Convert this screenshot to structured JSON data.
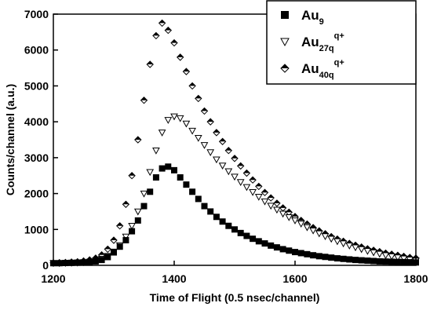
{
  "chart_data": {
    "type": "scatter",
    "x_label": "Time of Flight (0.5 nsec/channel)",
    "y_label": "Counts/channel (a.u.)",
    "xlim": [
      1200,
      1800
    ],
    "xticks": [
      1200,
      1400,
      1600,
      1800
    ],
    "ylim": [
      0,
      7000
    ],
    "yticks": [
      0,
      1000,
      2000,
      3000,
      4000,
      5000,
      6000,
      7000
    ],
    "legend": "top-right",
    "x": [
      1200,
      1210,
      1220,
      1230,
      1240,
      1250,
      1260,
      1270,
      1280,
      1290,
      1300,
      1310,
      1320,
      1330,
      1340,
      1350,
      1360,
      1370,
      1380,
      1390,
      1400,
      1410,
      1420,
      1430,
      1440,
      1450,
      1460,
      1470,
      1480,
      1490,
      1500,
      1510,
      1520,
      1530,
      1540,
      1550,
      1560,
      1570,
      1580,
      1590,
      1600,
      1610,
      1620,
      1630,
      1640,
      1650,
      1660,
      1670,
      1680,
      1690,
      1700,
      1710,
      1720,
      1730,
      1740,
      1750,
      1760,
      1770,
      1780,
      1790,
      1800
    ],
    "series": [
      {
        "name": "Au",
        "subscript": "9",
        "marker": "square",
        "color": "#000000",
        "values": [
          60,
          60,
          65,
          70,
          75,
          80,
          90,
          110,
          150,
          230,
          360,
          520,
          700,
          950,
          1250,
          1650,
          2050,
          2450,
          2700,
          2750,
          2650,
          2450,
          2250,
          2050,
          1850,
          1650,
          1500,
          1350,
          1220,
          1100,
          1000,
          900,
          820,
          740,
          670,
          610,
          550,
          500,
          450,
          410,
          370,
          340,
          310,
          280,
          255,
          235,
          215,
          195,
          180,
          165,
          150,
          140,
          130,
          120,
          110,
          105,
          100,
          95,
          90,
          85,
          80
        ]
      },
      {
        "name": "Au",
        "subscript": "27q",
        "superscript": "q+",
        "marker": "triangle-down",
        "color": "#000000",
        "values": [
          60,
          62,
          65,
          70,
          75,
          85,
          100,
          130,
          180,
          260,
          380,
          560,
          800,
          1100,
          1500,
          2000,
          2600,
          3200,
          3700,
          4050,
          4150,
          4100,
          3950,
          3750,
          3550,
          3350,
          3150,
          2950,
          2780,
          2620,
          2470,
          2320,
          2180,
          2040,
          1910,
          1780,
          1660,
          1550,
          1440,
          1340,
          1250,
          1160,
          1060,
          970,
          890,
          810,
          740,
          670,
          610,
          550,
          500,
          450,
          400,
          360,
          320,
          280,
          250,
          220,
          190,
          160,
          130
        ]
      },
      {
        "name": "Au",
        "subscript": "40q",
        "superscript": "q+",
        "marker": "diamond-half",
        "color": "#000000",
        "values": [
          70,
          75,
          80,
          90,
          100,
          120,
          150,
          200,
          290,
          450,
          700,
          1100,
          1700,
          2500,
          3500,
          4600,
          5600,
          6400,
          6750,
          6550,
          6200,
          5800,
          5400,
          5000,
          4650,
          4300,
          4000,
          3700,
          3450,
          3200,
          2980,
          2770,
          2570,
          2380,
          2200,
          2030,
          1880,
          1730,
          1600,
          1480,
          1360,
          1250,
          1150,
          1050,
          960,
          880,
          800,
          730,
          670,
          610,
          560,
          510,
          460,
          420,
          380,
          340,
          310,
          280,
          250,
          220,
          200
        ]
      }
    ]
  }
}
